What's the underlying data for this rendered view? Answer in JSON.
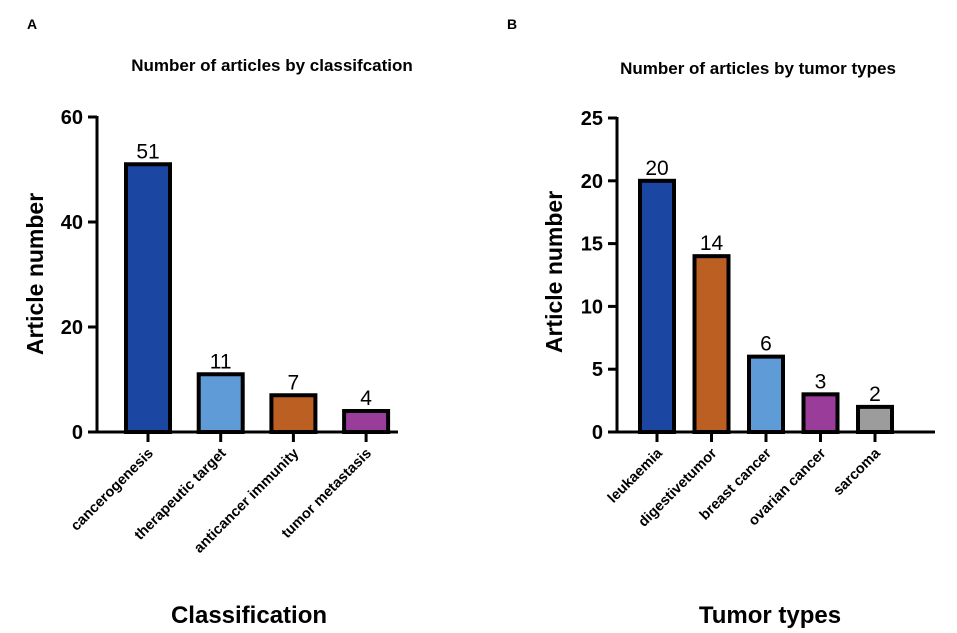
{
  "chart_data": [
    {
      "panel_label": "A",
      "type": "bar",
      "title": "Number of articles by classifcation",
      "xlabel": "Classification",
      "ylabel": "Article number",
      "ylim": [
        0,
        60
      ],
      "yticks": [
        "0",
        "20",
        "40",
        "60"
      ],
      "categories": [
        "cancerogenesis",
        "therapeutic target",
        "anticancer immunity",
        "tumor metastasis"
      ],
      "values": [
        51,
        11,
        7,
        4
      ],
      "data_labels": [
        "51",
        "11",
        "7",
        "4"
      ],
      "colors": [
        "#1b47a3",
        "#5f9bd7",
        "#bb5f22",
        "#9a3c9a"
      ]
    },
    {
      "panel_label": "B",
      "type": "bar",
      "title": "Number of articles by tumor types",
      "xlabel": "Tumor types",
      "ylabel": "Article number",
      "ylim": [
        0,
        25
      ],
      "yticks": [
        "0",
        "5",
        "10",
        "15",
        "20",
        "25"
      ],
      "categories": [
        "leukaemia",
        "digestivetumor",
        "breast cancer",
        "ovarian cancer",
        "sarcoma"
      ],
      "values": [
        20,
        14,
        6,
        3,
        2
      ],
      "data_labels": [
        "20",
        "14",
        "6",
        "3",
        "2"
      ],
      "colors": [
        "#1b47a3",
        "#bb5f22",
        "#5f9bd7",
        "#9a3c9a",
        "#9c9c9c"
      ]
    }
  ]
}
